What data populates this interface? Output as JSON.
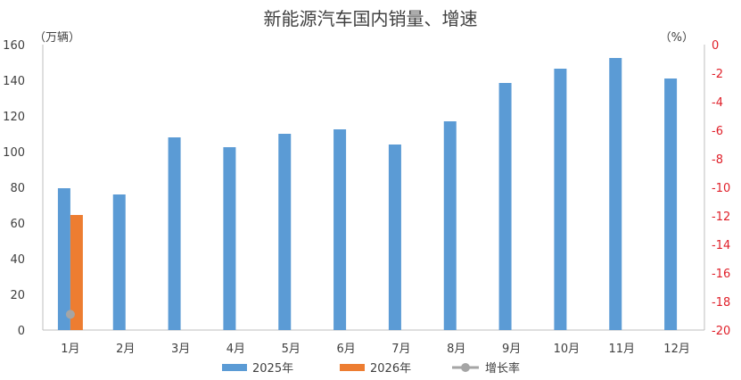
{
  "chart_data": {
    "type": "bar",
    "title": "新能源汽车国内销量、增速",
    "left_unit": "（万辆）",
    "right_unit": "（%）",
    "categories": [
      "1月",
      "2月",
      "3月",
      "4月",
      "5月",
      "6月",
      "7月",
      "8月",
      "9月",
      "10月",
      "11月",
      "12月"
    ],
    "series": [
      {
        "name": "2025年",
        "type": "bar",
        "axis": "left",
        "color": "#5b9bd5",
        "values": [
          79.5,
          76.0,
          108.0,
          102.5,
          110.0,
          112.5,
          104.0,
          117.0,
          138.5,
          146.5,
          152.5,
          141.0
        ]
      },
      {
        "name": "2026年",
        "type": "bar",
        "axis": "left",
        "color": "#ed7d31",
        "values": [
          64.5,
          null,
          null,
          null,
          null,
          null,
          null,
          null,
          null,
          null,
          null,
          null
        ]
      },
      {
        "name": "增长率",
        "type": "line",
        "axis": "right",
        "color": "#a5a5a5",
        "values": [
          -18.9,
          null,
          null,
          null,
          null,
          null,
          null,
          null,
          null,
          null,
          null,
          null
        ]
      }
    ],
    "y_left": {
      "min": 0,
      "max": 160,
      "step": 20,
      "ticks": [
        "0",
        "20",
        "40",
        "60",
        "80",
        "100",
        "120",
        "140",
        "160"
      ]
    },
    "y_right": {
      "min": -20,
      "max": 0,
      "step": 2,
      "ticks": [
        "-20",
        "-18",
        "-16",
        "-14",
        "-12",
        "-10",
        "-8",
        "-6",
        "-4",
        "-2",
        "0"
      ],
      "color": "#e0202a"
    },
    "legend_position": "bottom",
    "grid": false
  }
}
